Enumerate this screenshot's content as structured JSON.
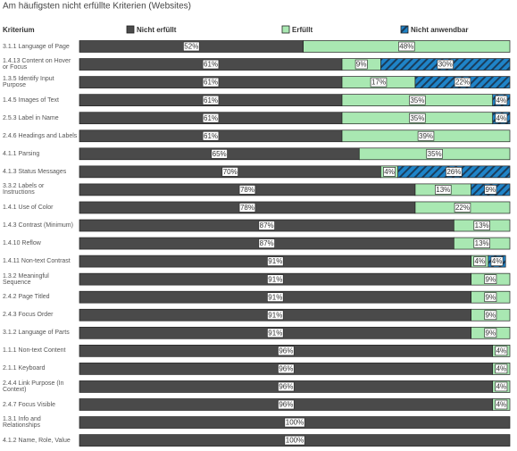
{
  "chart_data": {
    "type": "stacked-bar-horizontal",
    "title": "Am häufigsten nicht erfüllte Kriterien (Websites)",
    "category_header": "Kriterium",
    "categories": [
      "3.1.1 Language of Page",
      "1.4.13 Content on Hover or Focus",
      "1.3.5 Identify Input Purpose",
      "1.4.5 Images of Text",
      "2.5.3 Label in Name",
      "2.4.6 Headings and Labels",
      "4.1.1 Parsing",
      "4.1.3 Status Messages",
      "3.3.2 Labels or Instructions",
      "1.4.1 Use of Color",
      "1.4.3 Contrast (Minimum)",
      "1.4.10 Reflow",
      "1.4.11 Non-text Contrast",
      "1.3.2 Meaningful Sequence",
      "2.4.2 Page Titled",
      "2.4.3 Focus Order",
      "3.1.2 Language of Parts",
      "1.1.1 Non-text Content",
      "2.1.1 Keyboard",
      "2.4.4 Link Purpose (In Context)",
      "2.4.7 Focus Visible",
      "1.3.1 Info and Relationships",
      "4.1.2 Name, Role, Value"
    ],
    "xlim": [
      0,
      100
    ],
    "series": [
      {
        "name": "Nicht erfüllt",
        "color": "#4a4a4a",
        "hatch": false,
        "values": [
          52,
          61,
          61,
          61,
          61,
          61,
          65,
          70,
          78,
          78,
          87,
          87,
          91,
          91,
          91,
          91,
          91,
          96,
          96,
          96,
          96,
          100,
          100
        ],
        "value_labels": [
          "52%",
          "61%",
          "61%",
          "61%",
          "61%",
          "61%",
          "65%",
          "70%",
          "78%",
          "78%",
          "87%",
          "87%",
          "91%",
          "91%",
          "91%",
          "91%",
          "91%",
          "96%",
          "96%",
          "96%",
          "96%",
          "100%",
          "100%"
        ]
      },
      {
        "name": "Erfüllt",
        "color": "#a9e8b2",
        "hatch": false,
        "values": [
          48,
          9,
          17,
          35,
          35,
          39,
          35,
          4,
          13,
          22,
          13,
          13,
          4,
          9,
          9,
          9,
          9,
          4,
          4,
          4,
          4,
          null,
          null
        ],
        "value_labels": [
          "48%",
          "9%",
          "17%",
          "35%",
          "35%",
          "39%",
          "35%",
          "4%",
          "13%",
          "22%",
          "13%",
          "13%",
          "4%",
          "9%",
          "9%",
          "9%",
          "9%",
          "4%",
          "4%",
          "4%",
          "4%",
          null,
          null
        ]
      },
      {
        "name": "Nicht anwendbar",
        "color": "#1f84c8",
        "hatch": true,
        "values": [
          null,
          30,
          22,
          4,
          4,
          null,
          null,
          26,
          9,
          null,
          null,
          null,
          4,
          null,
          null,
          null,
          null,
          null,
          null,
          null,
          null,
          null,
          null
        ],
        "value_labels": [
          null,
          "30%",
          "22%",
          "4%",
          "4%",
          null,
          null,
          "26%",
          "9%",
          null,
          null,
          null,
          "4%",
          null,
          null,
          null,
          null,
          null,
          null,
          null,
          null,
          null,
          null
        ]
      }
    ]
  }
}
